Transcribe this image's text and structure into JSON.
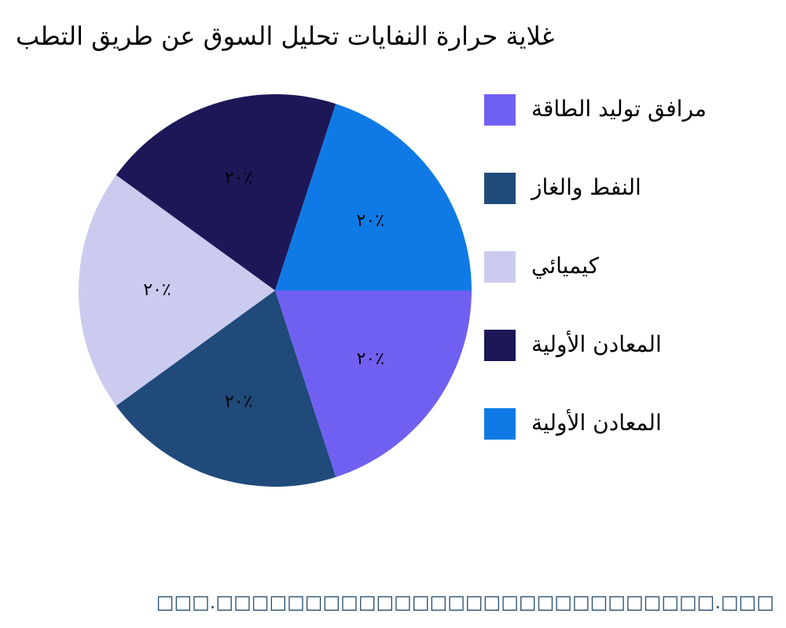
{
  "chart_data": {
    "type": "pie",
    "title": "غلاية حرارة النفايات تحليل السوق عن طريق التطب",
    "categories": [
      "مرافق توليد الطاقة",
      "النفط والغاز",
      "كيميائي",
      "المعادن الأولية",
      "المعادن الأولية"
    ],
    "values": [
      20,
      20,
      20,
      20,
      20
    ],
    "value_labels": [
      "٢٠٪",
      "٢٠٪",
      "٢٠٪",
      "٢٠٪",
      "٢٠٪"
    ],
    "colors": [
      "#7060f2",
      "#1f4a7a",
      "#cbcbf0",
      "#1c1858",
      "#0f7ae5"
    ],
    "footer": "□□□.□□□□□□□□□□□□□□□□□□□□□□□□□□□□.□□□"
  }
}
